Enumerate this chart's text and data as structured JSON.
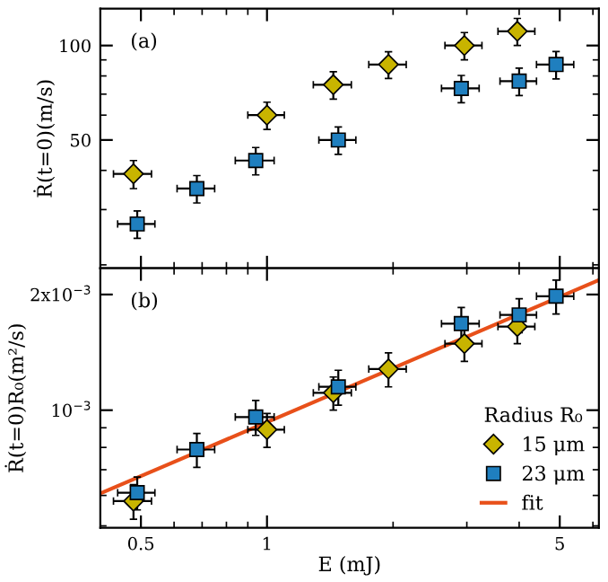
{
  "chart_data": [
    {
      "type": "scatter",
      "ylabel": "Ṙ(t=0)(m/s)",
      "annotations": [
        "(a)"
      ],
      "log": "xy",
      "xlim": [
        0.4,
        6.2
      ],
      "ylim": [
        19.5,
        131
      ],
      "xticks": [
        0.5,
        1,
        5
      ],
      "yticks": [
        50,
        100
      ],
      "tick_labels": "y",
      "grid": false,
      "legend": false,
      "series": [
        {
          "color": "#c8b400",
          "marker": "diamond",
          "x": [
            0.48,
            1.0,
            1.44,
            1.95,
            2.96,
            3.96
          ],
          "values": [
            39,
            60,
            75,
            87,
            100,
            111
          ],
          "errors": [
            4,
            6,
            7.5,
            8.5,
            10,
            11
          ],
          "xerrors": [
            0.05,
            0.1,
            0.15,
            0.2,
            0.3,
            0.4
          ]
        },
        {
          "color": "#1f7fbf",
          "marker": "square",
          "x": [
            0.49,
            0.68,
            0.94,
            1.48,
            2.91,
            4.0,
            4.9
          ],
          "values": [
            27,
            35,
            43,
            50,
            73,
            77,
            87
          ],
          "errors": [
            2.7,
            3.5,
            4.3,
            5,
            7.3,
            7.7,
            8.7
          ],
          "xerrors": [
            0.05,
            0.07,
            0.1,
            0.15,
            0.3,
            0.4,
            0.5
          ]
        }
      ]
    },
    {
      "type": "scatter",
      "xlabel": "E (mJ)",
      "ylabel": "Ṙ(t=0)R₀(m²/s)",
      "annotations": [
        "(b)"
      ],
      "legend_title": "Radius R₀",
      "log": "xy",
      "xlim": [
        0.4,
        6.2
      ],
      "ylim": [
        0.000494,
        0.00234
      ],
      "xticks": [
        0.5,
        1,
        5
      ],
      "yticks": [
        {
          "value": 0.001,
          "label": "10$^{−3}$"
        },
        {
          "value": 0.002,
          "label": "2x10$^{−3}$"
        }
      ],
      "grid": false,
      "legend": "bottom right",
      "series": [
        {
          "name": "15 μm",
          "color": "#c8b400",
          "marker": "diamond",
          "x": [
            0.48,
            1.0,
            1.44,
            1.95,
            2.96,
            3.96
          ],
          "values": [
            0.00058,
            0.00089,
            0.00111,
            0.00128,
            0.00149,
            0.00165
          ],
          "errors": [
            6e-05,
            9e-05,
            0.00011,
            0.00013,
            0.00015,
            0.00016
          ],
          "xerrors": [
            0.05,
            0.1,
            0.15,
            0.2,
            0.3,
            0.4
          ]
        },
        {
          "name": "23 μm",
          "color": "#1f7fbf",
          "marker": "square",
          "x": [
            0.49,
            0.68,
            0.94,
            1.48,
            2.91,
            4.0,
            4.9
          ],
          "values": [
            0.00061,
            0.00079,
            0.00096,
            0.00115,
            0.00168,
            0.00177,
            0.00198
          ],
          "errors": [
            6e-05,
            8e-05,
            0.0001,
            0.00012,
            0.00017,
            0.00018,
            0.0002
          ],
          "xerrors": [
            0.05,
            0.07,
            0.1,
            0.15,
            0.3,
            0.4,
            0.5
          ]
        },
        {
          "name": "fit",
          "type": "line",
          "color": "#e8501a",
          "marker": "none",
          "line_style": "solid",
          "x": [
            0.4,
            6.2
          ],
          "values": [
            0.000607,
            0.00218
          ]
        }
      ]
    }
  ]
}
